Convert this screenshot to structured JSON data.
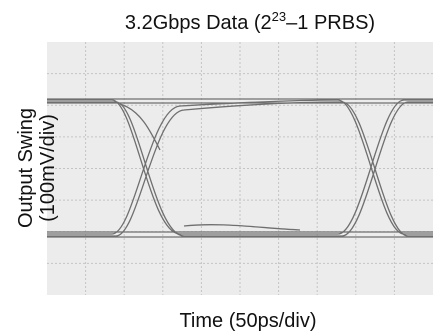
{
  "header": {
    "title_main": "3.2Gbps Data (2",
    "title_sup": "23",
    "title_end": "–1 PRBS)"
  },
  "axes": {
    "x_label": "Time (50ps/div)",
    "y_label_line1": "Output Swing",
    "y_label_line2": "(100mV/div)"
  }
}
